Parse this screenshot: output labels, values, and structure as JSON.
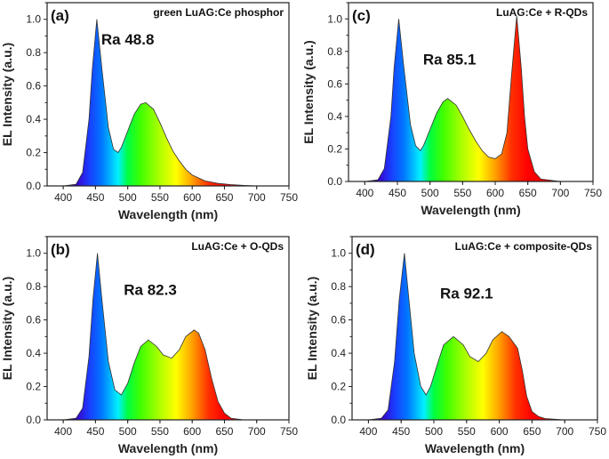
{
  "figure": {
    "spectrum_fill": "visible-spectrum gradient",
    "line_color": "#333333"
  },
  "chart_data": [
    {
      "type": "area",
      "panel_label": "(a)",
      "title": "green LuAG:Ce phosphor",
      "annotation": "Ra 48.8",
      "xlabel": "Wavelength (nm)",
      "ylabel": "EL Intensity (a.u.)",
      "xlim": [
        375,
        750
      ],
      "ylim": [
        0,
        1.1
      ],
      "xticks": [
        400,
        450,
        500,
        550,
        600,
        650,
        700,
        750
      ],
      "yticks": [
        "0.0",
        "0.2",
        "0.4",
        "0.6",
        "0.8",
        "1.0"
      ],
      "x": [
        380,
        400,
        420,
        430,
        440,
        445,
        452,
        460,
        470,
        478,
        485,
        490,
        500,
        510,
        520,
        528,
        540,
        550,
        560,
        570,
        580,
        590,
        600,
        620,
        640,
        660,
        680,
        700,
        750
      ],
      "y": [
        0,
        0,
        0.01,
        0.08,
        0.4,
        0.7,
        1.0,
        0.7,
        0.35,
        0.22,
        0.2,
        0.23,
        0.33,
        0.43,
        0.49,
        0.5,
        0.46,
        0.38,
        0.29,
        0.21,
        0.15,
        0.1,
        0.065,
        0.03,
        0.015,
        0.008,
        0.003,
        0,
        0
      ]
    },
    {
      "type": "area",
      "panel_label": "(c)",
      "title": "LuAG:Ce + R-QDs",
      "annotation": "Ra 85.1",
      "xlabel": "Wavelength (nm)",
      "ylabel": "EL Intensity (a.u.)",
      "xlim": [
        375,
        750
      ],
      "ylim": [
        0,
        1.1
      ],
      "xticks": [
        400,
        450,
        500,
        550,
        600,
        650,
        700,
        750
      ],
      "yticks": [
        "0.0",
        "0.2",
        "0.4",
        "0.6",
        "0.8",
        "1.0"
      ],
      "x": [
        380,
        400,
        420,
        430,
        440,
        445,
        452,
        460,
        470,
        478,
        485,
        490,
        500,
        510,
        520,
        527,
        540,
        550,
        560,
        570,
        580,
        590,
        600,
        610,
        618,
        625,
        633,
        640,
        645,
        650,
        660,
        670,
        700,
        750
      ],
      "y": [
        0,
        0,
        0.01,
        0.08,
        0.4,
        0.7,
        1.0,
        0.7,
        0.35,
        0.22,
        0.19,
        0.22,
        0.32,
        0.42,
        0.49,
        0.51,
        0.47,
        0.4,
        0.32,
        0.25,
        0.19,
        0.15,
        0.14,
        0.17,
        0.3,
        0.65,
        1.02,
        0.7,
        0.4,
        0.2,
        0.06,
        0.015,
        0,
        0
      ]
    },
    {
      "type": "area",
      "panel_label": "(b)",
      "title": "LuAG:Ce + O-QDs",
      "annotation": "Ra 82.3",
      "xlabel": "Wavelength (nm)",
      "ylabel": "EL Intensity (a.u.)",
      "xlim": [
        375,
        750
      ],
      "ylim": [
        0,
        1.1
      ],
      "xticks": [
        400,
        450,
        500,
        550,
        600,
        650,
        700,
        750
      ],
      "yticks": [
        "0.0",
        "0.2",
        "0.4",
        "0.6",
        "0.8",
        "1.0"
      ],
      "x": [
        380,
        400,
        420,
        430,
        440,
        446,
        453,
        460,
        470,
        480,
        490,
        500,
        510,
        520,
        532,
        545,
        555,
        568,
        580,
        590,
        603,
        610,
        620,
        630,
        640,
        650,
        660,
        680,
        750
      ],
      "y": [
        0,
        0,
        0.01,
        0.07,
        0.38,
        0.72,
        1.0,
        0.72,
        0.35,
        0.18,
        0.15,
        0.22,
        0.34,
        0.44,
        0.48,
        0.44,
        0.39,
        0.37,
        0.42,
        0.5,
        0.54,
        0.52,
        0.42,
        0.25,
        0.11,
        0.04,
        0.01,
        0,
        0
      ]
    },
    {
      "type": "area",
      "panel_label": "(d)",
      "title": "LuAG:Ce + composite-QDs",
      "annotation": "Ra 92.1",
      "xlabel": "Wavelength (nm)",
      "ylabel": "EL Intensity (a.u.)",
      "xlim": [
        375,
        750
      ],
      "ylim": [
        0,
        1.1
      ],
      "xticks": [
        400,
        450,
        500,
        550,
        600,
        650,
        700,
        750
      ],
      "yticks": [
        "0.0",
        "0.2",
        "0.4",
        "0.6",
        "0.8",
        "1.0"
      ],
      "x": [
        380,
        400,
        420,
        430,
        440,
        447,
        455,
        462,
        470,
        480,
        488,
        495,
        505,
        515,
        530,
        545,
        555,
        568,
        580,
        590,
        604,
        615,
        628,
        635,
        642,
        650,
        660,
        670,
        700,
        750
      ],
      "y": [
        0,
        0,
        0.01,
        0.06,
        0.35,
        0.72,
        1.0,
        0.72,
        0.4,
        0.2,
        0.15,
        0.2,
        0.33,
        0.45,
        0.5,
        0.45,
        0.38,
        0.35,
        0.4,
        0.48,
        0.53,
        0.5,
        0.43,
        0.3,
        0.14,
        0.05,
        0.02,
        0.008,
        0,
        0
      ]
    }
  ]
}
